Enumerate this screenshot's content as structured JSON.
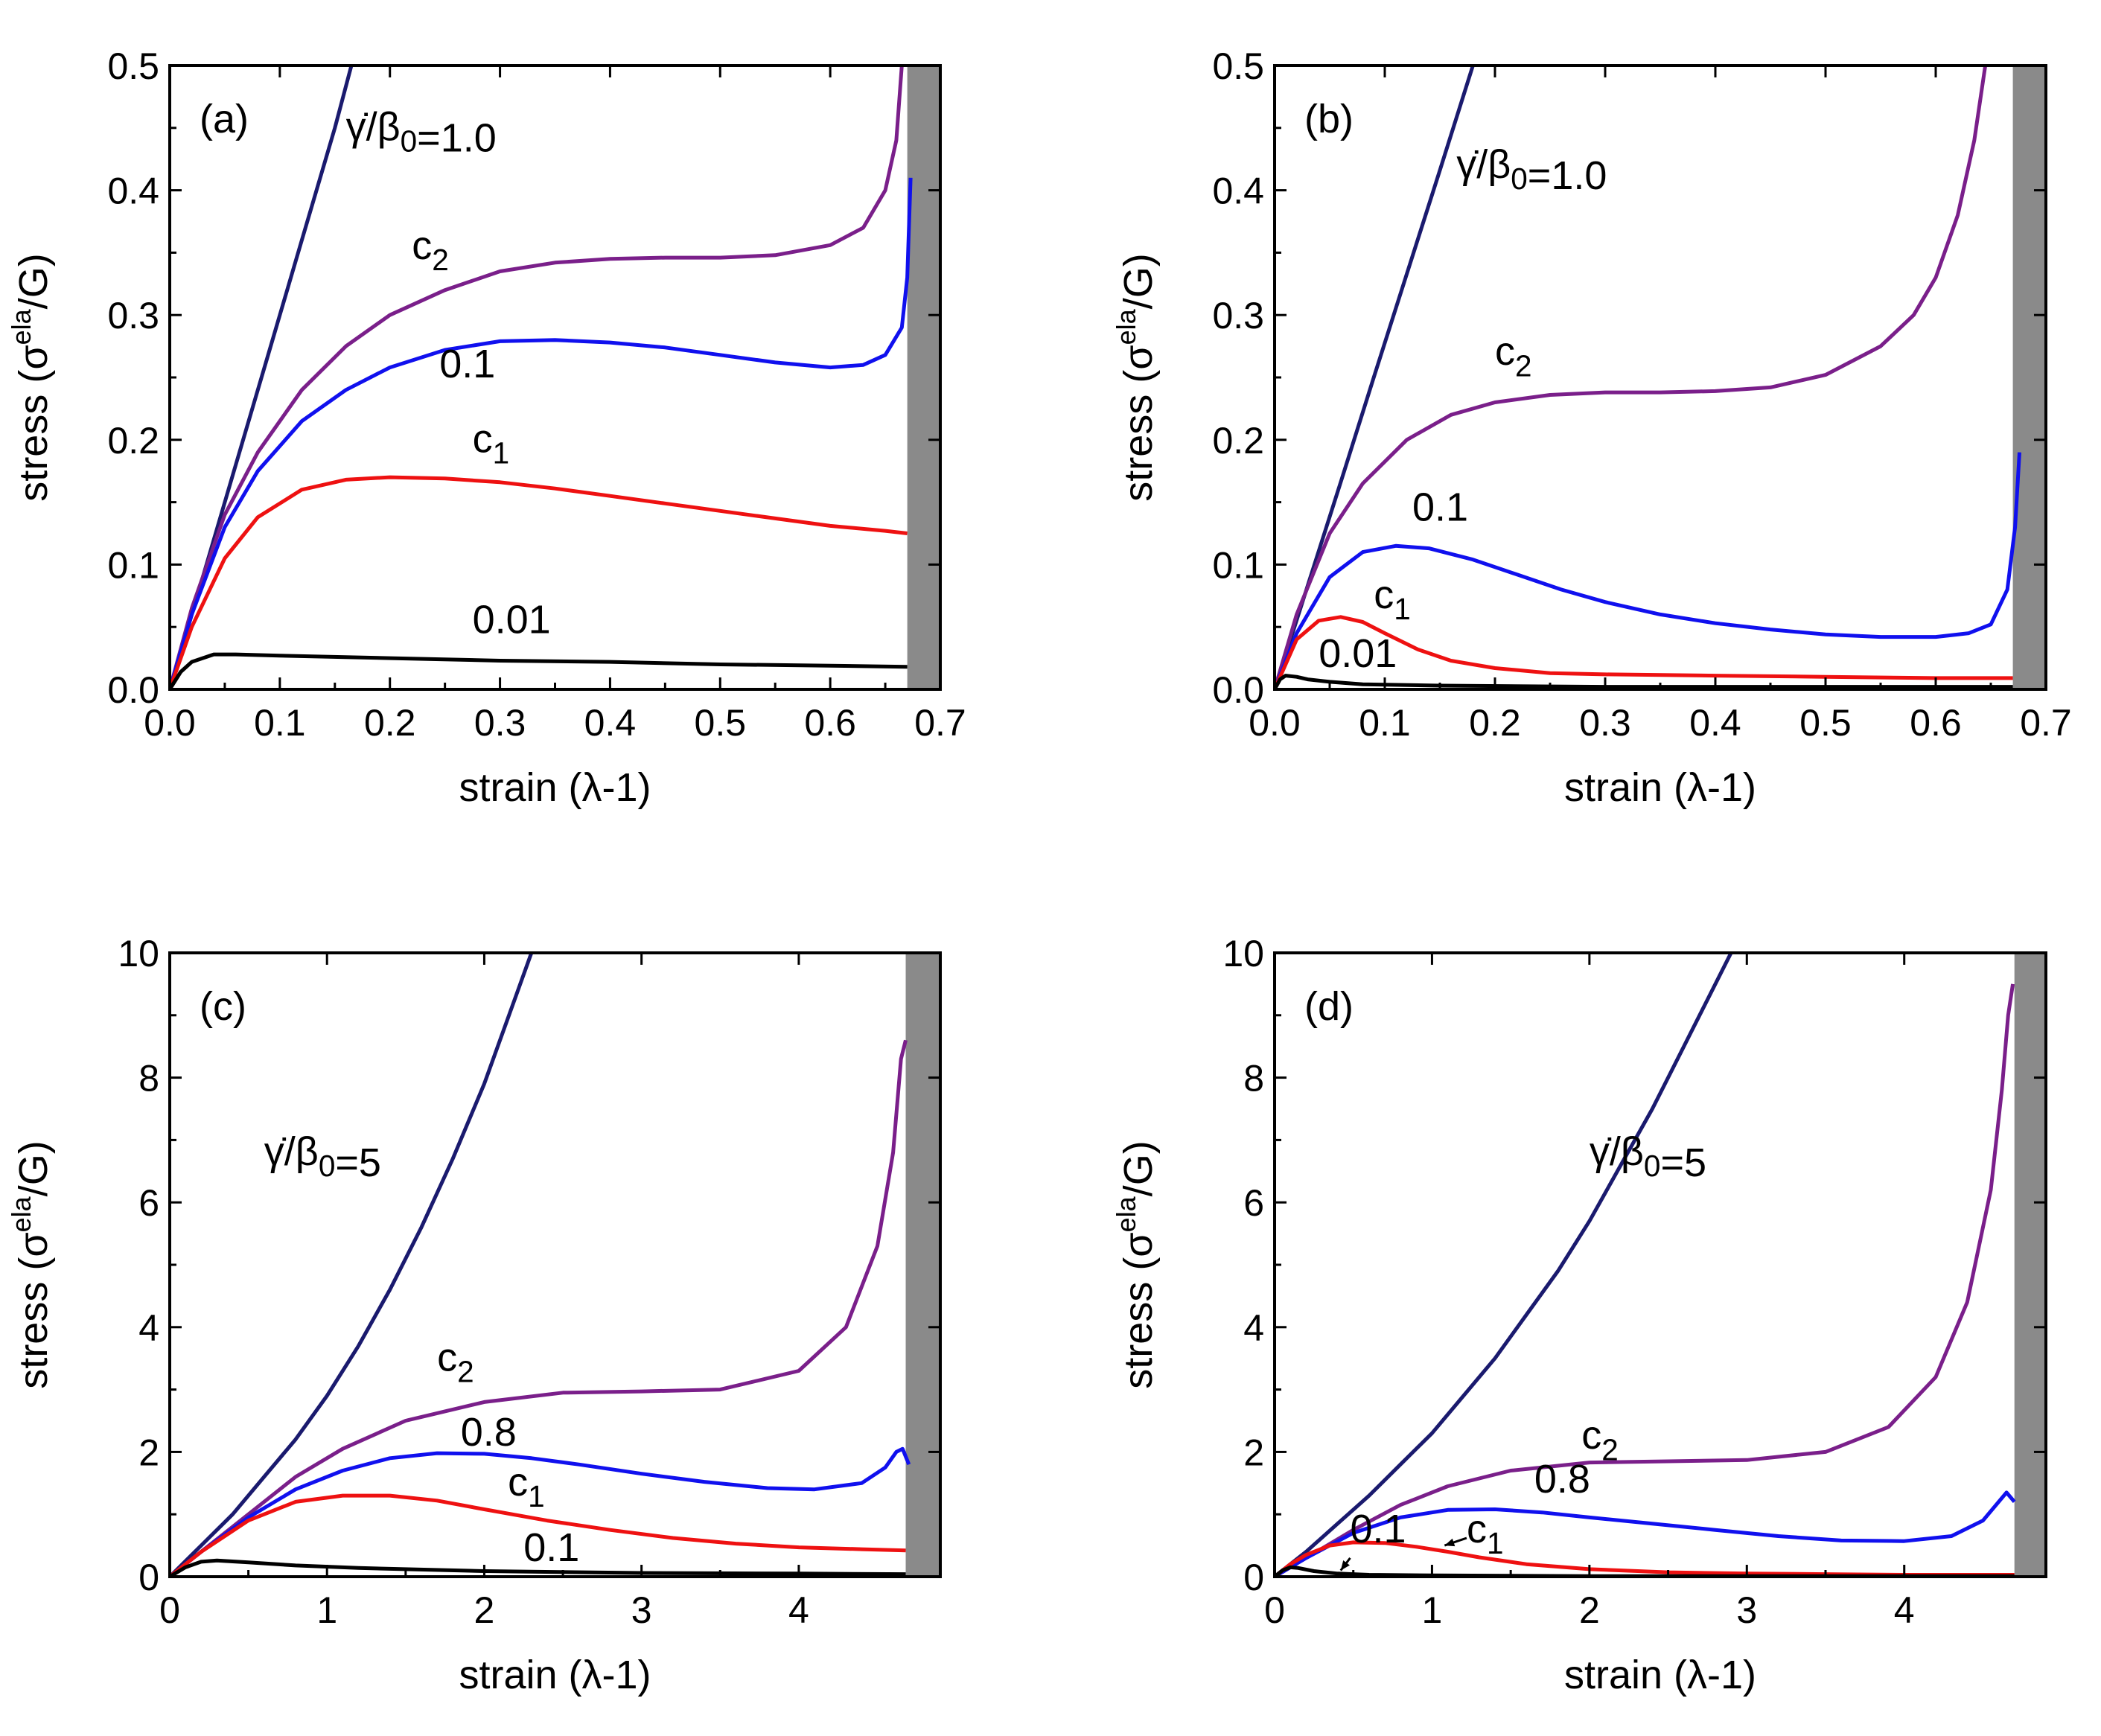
{
  "chart_data": [
    {
      "type": "line",
      "panel_label": "(a)",
      "xlabel": "strain (λ-1)",
      "ylabel_main": "stress (σ",
      "ylabel_sup": "ela",
      "ylabel_tail": "/G)",
      "xlim": [
        0,
        0.7
      ],
      "ylim": [
        0,
        0.5
      ],
      "xticks": [
        "0.0",
        "0.1",
        "0.2",
        "0.3",
        "0.4",
        "0.5",
        "0.6",
        "0.7"
      ],
      "yticks": [
        "0.0",
        "0.1",
        "0.2",
        "0.3",
        "0.4",
        "0.5"
      ],
      "xtick_values": [
        0,
        0.1,
        0.2,
        0.3,
        0.4,
        0.5,
        0.6,
        0.7
      ],
      "ytick_values": [
        0,
        0.1,
        0.2,
        0.3,
        0.4,
        0.5
      ],
      "shaded_region": [
        0.67,
        0.7
      ],
      "series": [
        {
          "label": "γ̇/β₀=1.0",
          "color": "#1a1a6e",
          "x": [
            0,
            0.03,
            0.06,
            0.09,
            0.12,
            0.15,
            0.165
          ],
          "y": [
            0,
            0.09,
            0.18,
            0.27,
            0.36,
            0.45,
            0.5
          ]
        },
        {
          "label": "c₂",
          "color": "#7a1f8a",
          "x": [
            0,
            0.02,
            0.05,
            0.08,
            0.12,
            0.16,
            0.2,
            0.25,
            0.3,
            0.35,
            0.4,
            0.45,
            0.5,
            0.55,
            0.6,
            0.63,
            0.65,
            0.66,
            0.665
          ],
          "y": [
            0,
            0.065,
            0.14,
            0.19,
            0.24,
            0.275,
            0.3,
            0.32,
            0.335,
            0.342,
            0.345,
            0.346,
            0.346,
            0.348,
            0.356,
            0.37,
            0.4,
            0.44,
            0.5
          ]
        },
        {
          "label": "0.1",
          "color": "#1010ee",
          "x": [
            0,
            0.02,
            0.05,
            0.08,
            0.12,
            0.16,
            0.2,
            0.25,
            0.3,
            0.35,
            0.4,
            0.45,
            0.5,
            0.55,
            0.6,
            0.63,
            0.65,
            0.665,
            0.67,
            0.673
          ],
          "y": [
            0,
            0.06,
            0.13,
            0.175,
            0.215,
            0.24,
            0.258,
            0.272,
            0.279,
            0.28,
            0.278,
            0.274,
            0.268,
            0.262,
            0.258,
            0.26,
            0.268,
            0.29,
            0.33,
            0.41
          ]
        },
        {
          "label": "c₁",
          "color": "#ee1111",
          "x": [
            0,
            0.02,
            0.05,
            0.08,
            0.12,
            0.16,
            0.2,
            0.25,
            0.3,
            0.35,
            0.4,
            0.45,
            0.5,
            0.55,
            0.6,
            0.65,
            0.67
          ],
          "y": [
            0,
            0.05,
            0.105,
            0.138,
            0.16,
            0.168,
            0.17,
            0.169,
            0.166,
            0.161,
            0.155,
            0.149,
            0.143,
            0.137,
            0.131,
            0.127,
            0.125
          ]
        },
        {
          "label": "0.01",
          "color": "#000000",
          "x": [
            0,
            0.01,
            0.02,
            0.04,
            0.06,
            0.1,
            0.2,
            0.3,
            0.4,
            0.5,
            0.6,
            0.67
          ],
          "y": [
            0,
            0.014,
            0.022,
            0.028,
            0.028,
            0.027,
            0.025,
            0.023,
            0.022,
            0.02,
            0.019,
            0.018
          ]
        }
      ],
      "annotations": [
        {
          "text": "γ̇/β₀=1.0",
          "x": 0.16,
          "y": 0.44
        },
        {
          "text": "c₂",
          "x": 0.22,
          "y": 0.345
        },
        {
          "text": "0.1",
          "x": 0.245,
          "y": 0.25
        },
        {
          "text": "c₁",
          "x": 0.275,
          "y": 0.19
        },
        {
          "text": "0.01",
          "x": 0.275,
          "y": 0.045
        }
      ]
    },
    {
      "type": "line",
      "panel_label": "(b)",
      "xlabel": "strain (λ-1)",
      "ylabel_main": "stress (σ",
      "ylabel_sup": "ela",
      "ylabel_tail": "/G)",
      "xlim": [
        0,
        0.7
      ],
      "ylim": [
        0,
        0.5
      ],
      "xticks": [
        "0.0",
        "0.1",
        "0.2",
        "0.3",
        "0.4",
        "0.5",
        "0.6",
        "0.7"
      ],
      "yticks": [
        "0.0",
        "0.1",
        "0.2",
        "0.3",
        "0.4",
        "0.5"
      ],
      "xtick_values": [
        0,
        0.1,
        0.2,
        0.3,
        0.4,
        0.5,
        0.6,
        0.7
      ],
      "ytick_values": [
        0,
        0.1,
        0.2,
        0.3,
        0.4,
        0.5
      ],
      "shaded_region": [
        0.67,
        0.7
      ],
      "series": [
        {
          "label": "γ̇/β₀=1.0",
          "color": "#1a1a6e",
          "x": [
            0,
            0.03,
            0.06,
            0.09,
            0.12,
            0.15,
            0.18
          ],
          "y": [
            0,
            0.083,
            0.166,
            0.25,
            0.333,
            0.416,
            0.5
          ]
        },
        {
          "label": "c₂",
          "color": "#7a1f8a",
          "x": [
            0,
            0.02,
            0.05,
            0.08,
            0.12,
            0.16,
            0.2,
            0.25,
            0.3,
            0.35,
            0.4,
            0.45,
            0.5,
            0.55,
            0.58,
            0.6,
            0.62,
            0.635,
            0.645
          ],
          "y": [
            0,
            0.06,
            0.125,
            0.165,
            0.2,
            0.22,
            0.23,
            0.236,
            0.238,
            0.238,
            0.239,
            0.242,
            0.252,
            0.275,
            0.3,
            0.33,
            0.38,
            0.44,
            0.5
          ]
        },
        {
          "label": "0.1",
          "color": "#1010ee",
          "x": [
            0,
            0.02,
            0.05,
            0.08,
            0.11,
            0.14,
            0.18,
            0.22,
            0.26,
            0.3,
            0.35,
            0.4,
            0.45,
            0.5,
            0.55,
            0.6,
            0.63,
            0.65,
            0.665,
            0.672,
            0.676
          ],
          "y": [
            0,
            0.045,
            0.09,
            0.11,
            0.115,
            0.113,
            0.104,
            0.092,
            0.08,
            0.07,
            0.06,
            0.053,
            0.048,
            0.044,
            0.042,
            0.042,
            0.045,
            0.052,
            0.08,
            0.13,
            0.19
          ]
        },
        {
          "label": "c₁",
          "color": "#ee1111",
          "x": [
            0,
            0.02,
            0.04,
            0.06,
            0.08,
            0.1,
            0.13,
            0.16,
            0.2,
            0.25,
            0.3,
            0.4,
            0.5,
            0.6,
            0.67
          ],
          "y": [
            0,
            0.04,
            0.055,
            0.058,
            0.054,
            0.045,
            0.032,
            0.023,
            0.017,
            0.013,
            0.012,
            0.011,
            0.01,
            0.009,
            0.009
          ]
        },
        {
          "label": "0.01",
          "color": "#000000",
          "x": [
            0,
            0.005,
            0.01,
            0.02,
            0.03,
            0.05,
            0.08,
            0.15,
            0.3,
            0.5,
            0.67
          ],
          "y": [
            0,
            0.008,
            0.011,
            0.01,
            0.008,
            0.006,
            0.004,
            0.003,
            0.002,
            0.002,
            0.002
          ]
        }
      ],
      "annotations": [
        {
          "text": "γ̇/β₀=1.0",
          "x": 0.165,
          "y": 0.41
        },
        {
          "text": "c₂",
          "x": 0.2,
          "y": 0.26
        },
        {
          "text": "0.1",
          "x": 0.125,
          "y": 0.135
        },
        {
          "text": "c₁",
          "x": 0.09,
          "y": 0.065
        },
        {
          "text": "0.01",
          "x": 0.04,
          "y": 0.018
        }
      ]
    },
    {
      "type": "line",
      "panel_label": "(c)",
      "xlabel": "strain (λ-1)",
      "ylabel_main": "stress (σ",
      "ylabel_sup": "ela",
      "ylabel_tail": "/G)",
      "xlim": [
        0,
        4.9
      ],
      "ylim": [
        0,
        10
      ],
      "xticks": [
        "0",
        "1",
        "2",
        "3",
        "4"
      ],
      "yticks": [
        "0",
        "2",
        "4",
        "6",
        "8",
        "10"
      ],
      "xtick_values": [
        0,
        1,
        2,
        3,
        4
      ],
      "ytick_values": [
        0,
        2,
        4,
        6,
        8,
        10
      ],
      "shaded_region": [
        4.68,
        4.9
      ],
      "series": [
        {
          "label": "γ̇/β₀=5",
          "color": "#1a1a6e",
          "x": [
            0,
            0.2,
            0.4,
            0.6,
            0.8,
            1.0,
            1.2,
            1.4,
            1.6,
            1.8,
            2.0,
            2.2,
            2.3
          ],
          "y": [
            0,
            0.5,
            1.0,
            1.6,
            2.2,
            2.9,
            3.7,
            4.6,
            5.6,
            6.7,
            7.9,
            9.3,
            10
          ]
        },
        {
          "label": "c₂",
          "color": "#7a1f8a",
          "x": [
            0,
            0.2,
            0.5,
            0.8,
            1.1,
            1.5,
            2.0,
            2.5,
            3.0,
            3.5,
            4.0,
            4.3,
            4.5,
            4.6,
            4.65,
            4.68
          ],
          "y": [
            0,
            0.4,
            1.0,
            1.6,
            2.05,
            2.5,
            2.8,
            2.95,
            2.97,
            3.0,
            3.3,
            4.0,
            5.3,
            6.8,
            8.3,
            8.6
          ]
        },
        {
          "label": "0.8",
          "color": "#1010ee",
          "x": [
            0,
            0.2,
            0.5,
            0.8,
            1.1,
            1.4,
            1.7,
            2.0,
            2.3,
            2.6,
            3.0,
            3.4,
            3.8,
            4.1,
            4.4,
            4.55,
            4.62,
            4.66,
            4.7
          ],
          "y": [
            0,
            0.4,
            0.95,
            1.4,
            1.7,
            1.9,
            1.98,
            1.97,
            1.9,
            1.8,
            1.65,
            1.52,
            1.42,
            1.4,
            1.5,
            1.75,
            2.0,
            2.05,
            1.8
          ]
        },
        {
          "label": "c₁",
          "color": "#ee1111",
          "x": [
            0,
            0.2,
            0.5,
            0.8,
            1.1,
            1.4,
            1.7,
            2.0,
            2.4,
            2.8,
            3.2,
            3.6,
            4.0,
            4.4,
            4.68
          ],
          "y": [
            0,
            0.4,
            0.9,
            1.2,
            1.3,
            1.3,
            1.22,
            1.08,
            0.9,
            0.75,
            0.62,
            0.53,
            0.47,
            0.44,
            0.42
          ]
        },
        {
          "label": "0.1",
          "color": "#000000",
          "x": [
            0,
            0.1,
            0.2,
            0.3,
            0.5,
            0.8,
            1.2,
            2.0,
            3.0,
            4.0,
            4.68
          ],
          "y": [
            0,
            0.15,
            0.24,
            0.26,
            0.23,
            0.18,
            0.14,
            0.09,
            0.06,
            0.05,
            0.04
          ]
        }
      ],
      "annotations": [
        {
          "text": "γ̇/β₀=5",
          "x": 0.6,
          "y": 6.6
        },
        {
          "text": "c₂",
          "x": 1.7,
          "y": 3.3
        },
        {
          "text": "0.8",
          "x": 1.85,
          "y": 2.1
        },
        {
          "text": "c₁",
          "x": 2.15,
          "y": 1.3
        },
        {
          "text": "0.1",
          "x": 2.25,
          "y": 0.25
        }
      ]
    },
    {
      "type": "line",
      "panel_label": "(d)",
      "xlabel": "strain (λ-1)",
      "ylabel_main": "stress (σ",
      "ylabel_sup": "ela",
      "ylabel_tail": "/G)",
      "xlim": [
        0,
        4.9
      ],
      "ylim": [
        0,
        10
      ],
      "xticks": [
        "0",
        "1",
        "2",
        "3",
        "4"
      ],
      "yticks": [
        "0",
        "2",
        "4",
        "6",
        "8",
        "10"
      ],
      "xtick_values": [
        0,
        1,
        2,
        3,
        4
      ],
      "ytick_values": [
        0,
        2,
        4,
        6,
        8,
        10
      ],
      "shaded_region": [
        4.7,
        4.9
      ],
      "series": [
        {
          "label": "γ̇/β₀=5",
          "color": "#1a1a6e",
          "x": [
            0,
            0.2,
            0.4,
            0.6,
            0.8,
            1.0,
            1.2,
            1.4,
            1.6,
            1.8,
            2.0,
            2.2,
            2.4,
            2.6,
            2.8,
            2.9
          ],
          "y": [
            0,
            0.4,
            0.85,
            1.3,
            1.8,
            2.3,
            2.9,
            3.5,
            4.2,
            4.9,
            5.7,
            6.6,
            7.5,
            8.5,
            9.5,
            10
          ]
        },
        {
          "label": "c₂",
          "color": "#7a1f8a",
          "x": [
            0,
            0.2,
            0.5,
            0.8,
            1.1,
            1.5,
            2.0,
            2.5,
            3.0,
            3.5,
            3.9,
            4.2,
            4.4,
            4.55,
            4.62,
            4.66,
            4.69
          ],
          "y": [
            0,
            0.3,
            0.75,
            1.15,
            1.45,
            1.7,
            1.83,
            1.85,
            1.87,
            2.0,
            2.4,
            3.2,
            4.4,
            6.2,
            7.8,
            9.0,
            9.5
          ]
        },
        {
          "label": "0.8",
          "color": "#1010ee",
          "x": [
            0,
            0.2,
            0.5,
            0.8,
            1.1,
            1.4,
            1.7,
            2.0,
            2.4,
            2.8,
            3.2,
            3.6,
            4.0,
            4.3,
            4.5,
            4.6,
            4.65,
            4.7
          ],
          "y": [
            0,
            0.3,
            0.7,
            0.95,
            1.07,
            1.08,
            1.03,
            0.95,
            0.85,
            0.75,
            0.65,
            0.58,
            0.57,
            0.65,
            0.9,
            1.2,
            1.35,
            1.2
          ]
        },
        {
          "label": "c₁",
          "color": "#ee1111",
          "x": [
            0,
            0.1,
            0.2,
            0.35,
            0.5,
            0.7,
            0.9,
            1.1,
            1.3,
            1.6,
            2.0,
            2.5,
            3.0,
            3.5,
            4.0,
            4.7
          ],
          "y": [
            0,
            0.2,
            0.35,
            0.5,
            0.55,
            0.54,
            0.48,
            0.4,
            0.31,
            0.2,
            0.12,
            0.07,
            0.05,
            0.04,
            0.03,
            0.03
          ]
        },
        {
          "label": "0.1",
          "color": "#000000",
          "x": [
            0,
            0.05,
            0.1,
            0.15,
            0.25,
            0.4,
            0.6,
            1.0,
            2.0,
            3.0,
            4.0,
            4.7
          ],
          "y": [
            0,
            0.1,
            0.15,
            0.14,
            0.09,
            0.05,
            0.03,
            0.02,
            0.01,
            0.01,
            0.01,
            0.01
          ]
        }
      ],
      "annotations": [
        {
          "text": "γ̇/β₀=5",
          "x": 2.0,
          "y": 6.6
        },
        {
          "text": "c₂",
          "x": 1.95,
          "y": 2.05
        },
        {
          "text": "0.8",
          "x": 1.65,
          "y": 1.35
        },
        {
          "text": "c₁",
          "x": 1.22,
          "y": 0.55
        },
        {
          "text": "0.1",
          "x": 0.48,
          "y": 0.55
        }
      ],
      "pointers": [
        {
          "from": [
            1.22,
            0.62
          ],
          "to": [
            1.08,
            0.5
          ]
        },
        {
          "from": [
            0.48,
            0.3
          ],
          "to": [
            0.42,
            0.1
          ]
        }
      ]
    }
  ]
}
